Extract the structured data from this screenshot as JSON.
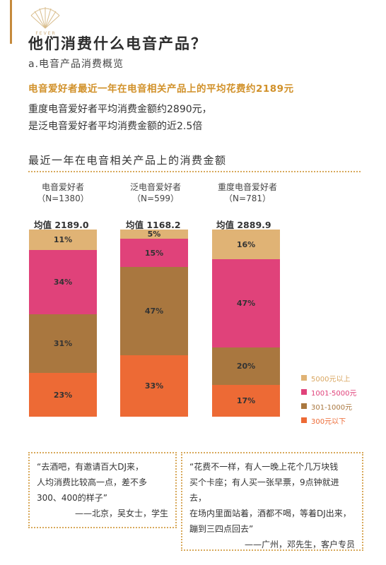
{
  "header": {
    "logo_text": "FEVER",
    "title": "他们消费什么电音产品？",
    "subtitle": "a.电音产品消费概览",
    "highlight": "电音爱好者最近一年在电音相关产品上的平均花费约2189元",
    "summary_lines": [
      "重度电音爱好者平均消费金额约2890元，",
      "是泛电音爱好者平均消费金额的近2.5倍"
    ]
  },
  "chart_data": {
    "type": "bar",
    "stacked": true,
    "percent": true,
    "title": "最近一年在电音相关产品上的消费金额",
    "categories": [
      "电音爱好者",
      "泛电音爱好者",
      "重度电音爱好者"
    ],
    "sample_sizes": [
      "（N=1380）",
      "（N=599）",
      "（N=781）"
    ],
    "means": [
      "均值 2189.0",
      "均值 1168.2",
      "均值 2889.9"
    ],
    "series": [
      {
        "name": "300元以下",
        "color": "#ed6a35",
        "values": [
          23,
          33,
          17
        ],
        "labels": [
          "23%",
          "33%",
          "17%"
        ]
      },
      {
        "name": "301-1000元",
        "color": "#a9773f",
        "values": [
          31,
          47,
          20
        ],
        "labels": [
          "31%",
          "47%",
          "20%"
        ]
      },
      {
        "name": "1001-5000元",
        "color": "#e0427a",
        "values": [
          34,
          15,
          47
        ],
        "labels": [
          "34%",
          "15%",
          "47%"
        ]
      },
      {
        "name": "5000元以上",
        "color": "#e0b375",
        "values": [
          11,
          5,
          16
        ],
        "labels": [
          "11%",
          "5%",
          "16%"
        ]
      }
    ],
    "legend_position": "right",
    "legend_text_colors": [
      "#d9a660",
      "#e0427a",
      "#a9773f",
      "#ed6a35"
    ]
  },
  "quotes": [
    {
      "lines": [
        "“去酒吧，有邀请百大DJ来，",
        "人均消费比较高一点，差不多",
        "300、400的样子”"
      ],
      "source": "——北京，吴女士，学生"
    },
    {
      "lines": [
        "“花费不一样，有人一晚上花个几万块钱",
        "买个卡座；有人买一张早票，9点钟就进去，",
        "在场内里面站着，酒都不喝，等着DJ出来，",
        "蹦到三四点回去”"
      ],
      "source": "——广州，邓先生，客户专员"
    }
  ]
}
